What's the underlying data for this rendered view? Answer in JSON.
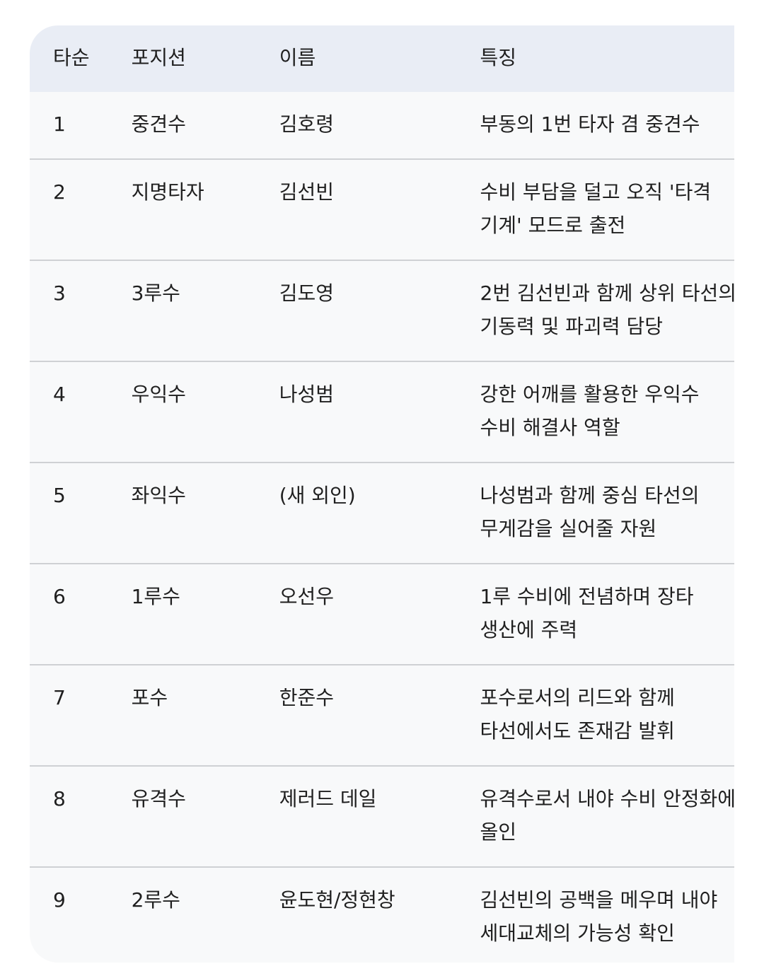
{
  "table": {
    "header": [
      "타순",
      "포지션",
      "이름",
      "특징"
    ],
    "rows": [
      [
        "1",
        "중견수",
        "김호령",
        "부동의 1번 타자 겸 중견수"
      ],
      [
        "2",
        "지명타자",
        "김선빈",
        "수비 부담을 덜고 오직 '타격 기계' 모드로 출전"
      ],
      [
        "3",
        "3루수",
        "김도영",
        "2번 김선빈과 함께 상위 타선의 기동력 및 파괴력 담당"
      ],
      [
        "4",
        "우익수",
        "나성범",
        "강한 어깨를 활용한 우익수 수비 해결사 역할"
      ],
      [
        "5",
        "좌익수",
        "(새 외인)",
        "나성범과 함께 중심 타선의 무게감을 실어줄 자원"
      ],
      [
        "6",
        "1루수",
        "오선우",
        "1루 수비에 전념하며 장타 생산에 주력"
      ],
      [
        "7",
        "포수",
        "한준수",
        "포수로서의 리드와 함께 타선에서도 존재감 발휘"
      ],
      [
        "8",
        "유격수",
        "제러드 데일",
        "유격수로서 내야 수비 안정화에 올인"
      ],
      [
        "9",
        "2루수",
        "윤도현/정현창",
        "김선빈의 공백을 메우며 내야 세대교체의 가능성 확인"
      ]
    ]
  }
}
